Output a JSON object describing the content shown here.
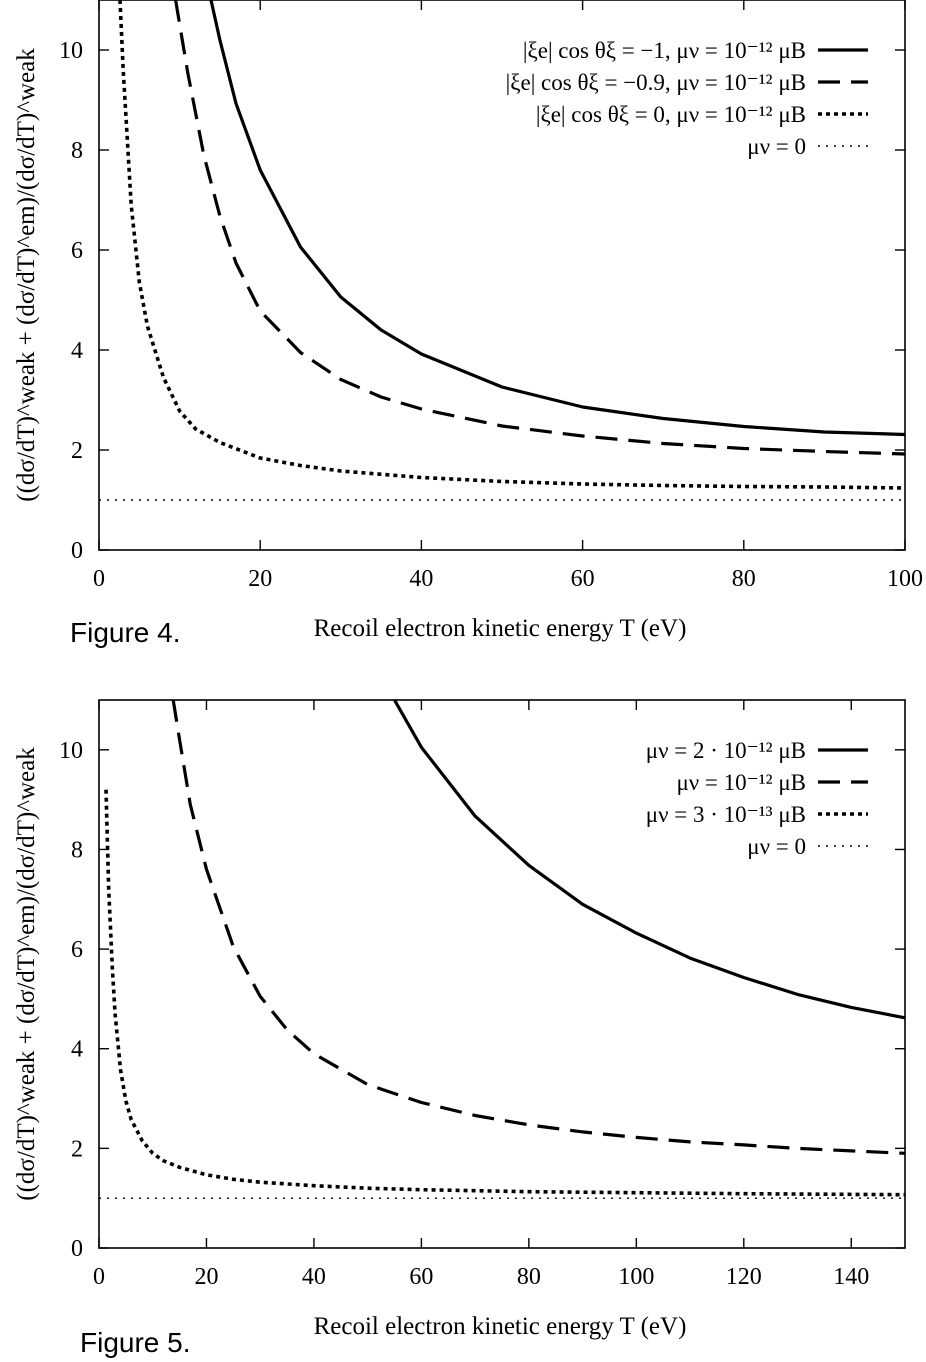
{
  "chart_data": [
    {
      "type": "line",
      "caption": "Figure 4.",
      "xlabel": "Recoil electron kinetic energy T (eV)",
      "ylabel": "((dσ/dT)^weak + (dσ/dT)^em)/(dσ/dT)^weak",
      "xlim": [
        0,
        100
      ],
      "ylim": [
        0,
        11
      ],
      "xticks": [
        "0",
        "20",
        "40",
        "60",
        "80",
        "100"
      ],
      "yticks": [
        "0",
        "2",
        "4",
        "6",
        "8",
        "10"
      ],
      "legend_position": "top-right",
      "series": [
        {
          "name": "|ξe| cos θξ = −1,   μν = 10⁻¹² μB",
          "style": "solid",
          "x": [
            13.9,
            15,
            17,
            20,
            25,
            30,
            35,
            40,
            50,
            60,
            70,
            80,
            90,
            100
          ],
          "y": [
            11.0,
            10.2,
            8.93,
            7.6,
            6.06,
            5.06,
            4.4,
            3.92,
            3.26,
            2.86,
            2.63,
            2.47,
            2.36,
            2.31
          ]
        },
        {
          "name": "|ξe| cos θξ = −0.9, μν = 10⁻¹² μB",
          "style": "dashed",
          "x": [
            9.5,
            11,
            13,
            15,
            17,
            20,
            25,
            30,
            35,
            40,
            50,
            60,
            70,
            80,
            90,
            100
          ],
          "y": [
            11.0,
            9.55,
            7.9,
            6.68,
            5.74,
            4.78,
            3.95,
            3.41,
            3.06,
            2.82,
            2.48,
            2.28,
            2.13,
            2.03,
            1.97,
            1.92
          ]
        },
        {
          "name": "|ξe| cos θξ = 0,       μν = 10⁻¹² μB",
          "style": "dotted",
          "x": [
            2.6,
            3,
            4,
            5,
            6,
            8,
            10,
            12,
            15,
            20,
            25,
            30,
            40,
            50,
            60,
            70,
            80,
            90,
            100
          ],
          "y": [
            11.0,
            9.6,
            6.9,
            5.36,
            4.48,
            3.45,
            2.78,
            2.42,
            2.15,
            1.84,
            1.69,
            1.58,
            1.45,
            1.37,
            1.32,
            1.29,
            1.27,
            1.26,
            1.24
          ]
        },
        {
          "name": "μν = 0",
          "style": "fine-dotted",
          "x": [
            0,
            100
          ],
          "y": [
            1,
            1
          ]
        }
      ]
    },
    {
      "type": "line",
      "caption": "Figure 5.",
      "xlabel": "Recoil electron kinetic energy T (eV)",
      "ylabel": "((dσ/dT)^weak + (dσ/dT)^em)/(dσ/dT)^weak",
      "xlim": [
        0,
        150
      ],
      "ylim": [
        0,
        11
      ],
      "xticks": [
        "0",
        "20",
        "40",
        "60",
        "80",
        "100",
        "120",
        "140"
      ],
      "yticks": [
        "0",
        "2",
        "4",
        "6",
        "8",
        "10"
      ],
      "legend_position": "top-right",
      "series": [
        {
          "name": "μν = 2 · 10⁻¹² μB",
          "style": "solid",
          "x": [
            55,
            60,
            70,
            80,
            90,
            100,
            110,
            120,
            130,
            140,
            150
          ],
          "y": [
            11.0,
            10.05,
            8.67,
            7.68,
            6.9,
            6.32,
            5.82,
            5.43,
            5.09,
            4.83,
            4.62
          ]
        },
        {
          "name": "μν = 10⁻¹² μB",
          "style": "dashed",
          "x": [
            13.8,
            15,
            17,
            20,
            25,
            30,
            35,
            40,
            50,
            60,
            70,
            80,
            90,
            100,
            110,
            120,
            130,
            140,
            150
          ],
          "y": [
            11.0,
            10.2,
            8.9,
            7.6,
            6.05,
            5.05,
            4.38,
            3.9,
            3.28,
            2.92,
            2.66,
            2.47,
            2.33,
            2.22,
            2.13,
            2.07,
            2.0,
            1.95,
            1.9
          ]
        },
        {
          "name": "μν = 3 · 10⁻¹³ μB",
          "style": "dotted",
          "x": [
            1.3,
            1.8,
            2.5,
            3,
            4,
            5,
            6,
            8,
            10,
            12,
            15,
            20,
            25,
            30,
            40,
            50,
            60,
            80,
            100,
            120,
            150
          ],
          "y": [
            9.2,
            7.2,
            5.6,
            4.7,
            3.58,
            2.95,
            2.58,
            2.16,
            1.9,
            1.75,
            1.62,
            1.47,
            1.38,
            1.32,
            1.25,
            1.2,
            1.17,
            1.13,
            1.11,
            1.09,
            1.07
          ]
        },
        {
          "name": "μν = 0",
          "style": "fine-dotted",
          "x": [
            0,
            150
          ],
          "y": [
            1,
            1
          ]
        }
      ]
    }
  ]
}
